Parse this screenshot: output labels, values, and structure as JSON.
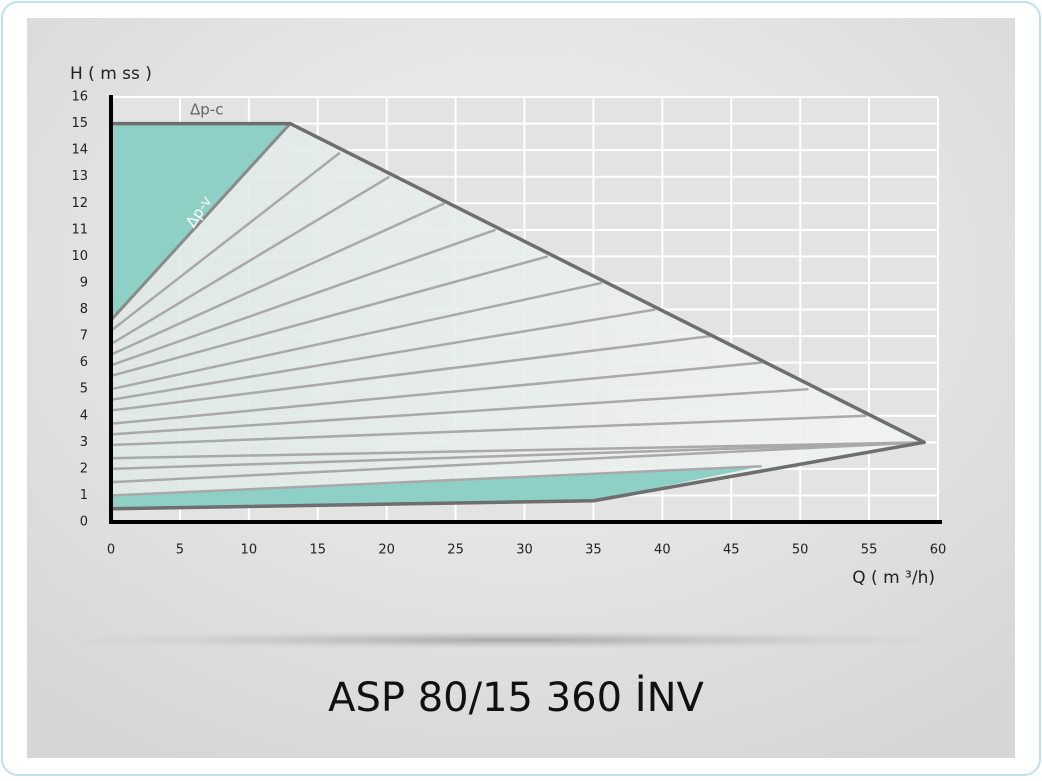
{
  "chart_data": {
    "type": "line",
    "title": "ASP 80/15 360 İNV",
    "y_label": "H ( m ss )",
    "x_label": "Q ( m ³/h)",
    "annotations": [
      "Δp-c",
      "Δp-v"
    ],
    "xlim": [
      0,
      60
    ],
    "xticks": [
      0,
      5,
      10,
      15,
      20,
      25,
      30,
      35,
      40,
      45,
      50,
      55,
      60
    ],
    "ylim": [
      0,
      16
    ],
    "yticks": [
      0,
      1,
      2,
      3,
      4,
      5,
      6,
      7,
      8,
      9,
      10,
      11,
      12,
      13,
      14,
      15,
      16
    ],
    "grid": true,
    "envelope": {
      "color": "#6e6e6e",
      "x": [
        0,
        13,
        59,
        35,
        0
      ],
      "values": [
        15,
        15,
        3,
        0.8,
        0.5
      ]
    },
    "dpv": {
      "color": "#8a8a8a",
      "x": [
        0,
        13
      ],
      "values": [
        7.6,
        15
      ]
    },
    "fill_color": "#8fd0c6",
    "series": [
      {
        "color": "#a9a9a9",
        "x": [
          0,
          16.6
        ],
        "values": [
          7.2,
          13.9
        ]
      },
      {
        "color": "#a9a9a9",
        "x": [
          0,
          20.2
        ],
        "values": [
          6.7,
          13.0
        ]
      },
      {
        "color": "#a9a9a9",
        "x": [
          0,
          24.2
        ],
        "values": [
          6.3,
          12.0
        ]
      },
      {
        "color": "#a9a9a9",
        "x": [
          0,
          27.9
        ],
        "values": [
          5.9,
          11.0
        ]
      },
      {
        "color": "#a9a9a9",
        "x": [
          0,
          31.7
        ],
        "values": [
          5.5,
          10.0
        ]
      },
      {
        "color": "#a9a9a9",
        "x": [
          0,
          35.6
        ],
        "values": [
          5.0,
          9.0
        ]
      },
      {
        "color": "#a9a9a9",
        "x": [
          0,
          39.5
        ],
        "values": [
          4.6,
          8.0
        ]
      },
      {
        "color": "#a9a9a9",
        "x": [
          0,
          43.5
        ],
        "values": [
          4.2,
          7.0
        ]
      },
      {
        "color": "#a9a9a9",
        "x": [
          0,
          47.2
        ],
        "values": [
          3.7,
          6.0
        ]
      },
      {
        "color": "#a9a9a9",
        "x": [
          0,
          50.6
        ],
        "values": [
          3.3,
          5.0
        ]
      },
      {
        "color": "#a9a9a9",
        "x": [
          0,
          54.8
        ],
        "values": [
          2.9,
          4.0
        ]
      },
      {
        "color": "#a9a9a9",
        "x": [
          0,
          59
        ],
        "values": [
          2.4,
          3.0
        ]
      },
      {
        "color": "#a9a9a9",
        "x": [
          0,
          59
        ],
        "values": [
          2.0,
          3.0
        ]
      },
      {
        "color": "#a9a9a9",
        "x": [
          0,
          59
        ],
        "values": [
          1.5,
          3.0
        ]
      },
      {
        "color": "#a9a9a9",
        "x": [
          0,
          47.2
        ],
        "values": [
          1.0,
          2.1
        ]
      }
    ]
  }
}
